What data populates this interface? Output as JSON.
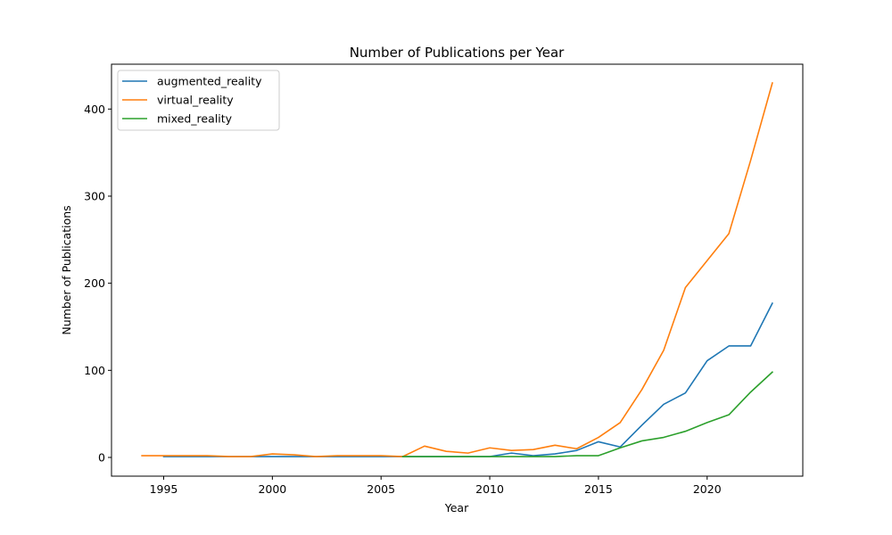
{
  "chart_data": {
    "type": "line",
    "title": "Number of Publications per Year",
    "xlabel": "Year",
    "ylabel": "Number of Publications",
    "xlim": [
      1992.6,
      2024.4
    ],
    "ylim": [
      -21.5,
      451.5
    ],
    "xticks": [
      1995,
      2000,
      2005,
      2010,
      2015,
      2020
    ],
    "yticks": [
      0,
      100,
      200,
      300,
      400
    ],
    "grid": false,
    "legend_position": "top-left",
    "series": [
      {
        "name": "augmented_reality",
        "color": "#1f77b4",
        "x": [
          1995,
          1996,
          1997,
          1998,
          1999,
          2000,
          2001,
          2002,
          2003,
          2004,
          2005,
          2006,
          2007,
          2008,
          2009,
          2010,
          2011,
          2012,
          2013,
          2014,
          2015,
          2016,
          2017,
          2018,
          2019,
          2020,
          2021,
          2022,
          2023
        ],
        "y": [
          1,
          1,
          1,
          1,
          1,
          1,
          1,
          1,
          1,
          1,
          1,
          1,
          1,
          1,
          1,
          1,
          5,
          2,
          4,
          8,
          18,
          12,
          37,
          61,
          74,
          111,
          128,
          128,
          177
        ]
      },
      {
        "name": "virtual_reality",
        "color": "#ff7f0e",
        "x": [
          1994,
          1995,
          1996,
          1997,
          1998,
          1999,
          2000,
          2001,
          2002,
          2003,
          2004,
          2005,
          2006,
          2007,
          2008,
          2009,
          2010,
          2011,
          2012,
          2013,
          2014,
          2015,
          2016,
          2017,
          2018,
          2019,
          2020,
          2021,
          2022,
          2023
        ],
        "y": [
          2,
          2,
          2,
          2,
          1,
          1,
          4,
          3,
          1,
          2,
          2,
          2,
          1,
          13,
          7,
          5,
          11,
          8,
          9,
          14,
          10,
          23,
          40,
          78,
          123,
          195,
          226,
          257,
          341,
          430
        ]
      },
      {
        "name": "mixed_reality",
        "color": "#2ca02c",
        "x": [
          2006,
          2007,
          2008,
          2009,
          2010,
          2011,
          2012,
          2013,
          2014,
          2015,
          2016,
          2017,
          2018,
          2019,
          2020,
          2021,
          2022,
          2023
        ],
        "y": [
          1,
          1,
          1,
          1,
          1,
          1,
          1,
          1,
          2,
          2,
          11,
          19,
          23,
          30,
          40,
          49,
          75,
          98
        ]
      }
    ]
  }
}
